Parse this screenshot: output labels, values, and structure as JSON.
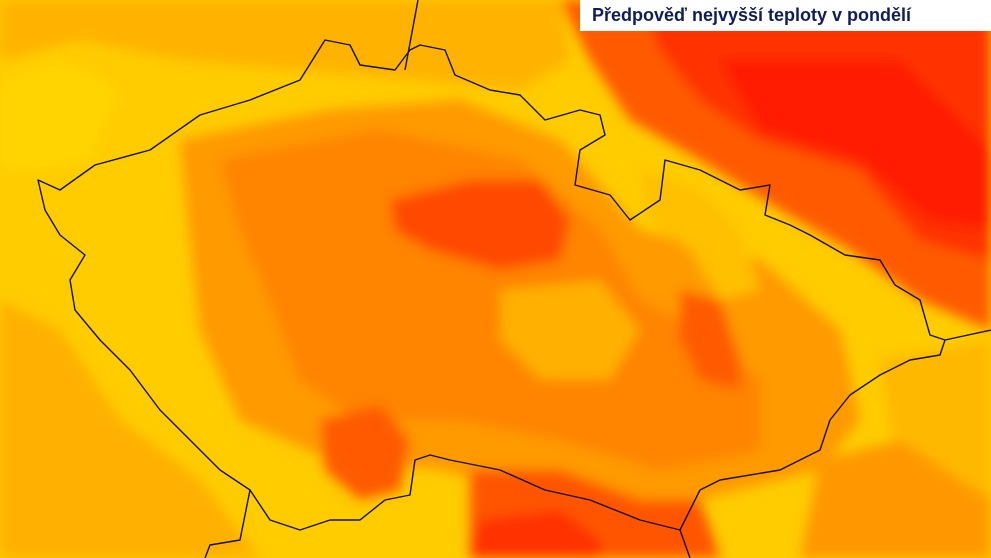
{
  "header": {
    "title": "Předpověď nejvyšší teploty v pondělí"
  }
}
